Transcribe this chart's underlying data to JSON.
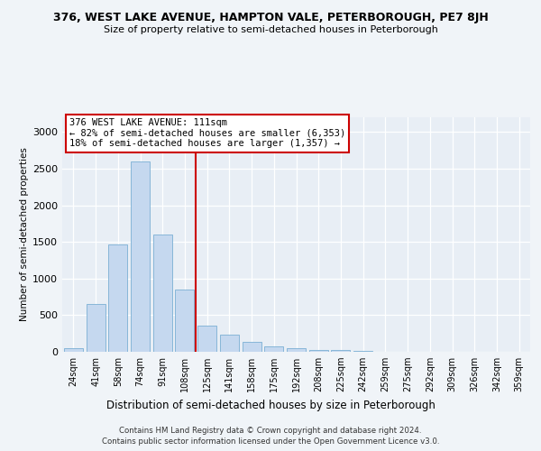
{
  "title1": "376, WEST LAKE AVENUE, HAMPTON VALE, PETERBOROUGH, PE7 8JH",
  "title2": "Size of property relative to semi-detached houses in Peterborough",
  "xlabel": "Distribution of semi-detached houses by size in Peterborough",
  "ylabel": "Number of semi-detached properties",
  "categories": [
    "24sqm",
    "41sqm",
    "58sqm",
    "74sqm",
    "91sqm",
    "108sqm",
    "125sqm",
    "141sqm",
    "158sqm",
    "175sqm",
    "192sqm",
    "208sqm",
    "225sqm",
    "242sqm",
    "259sqm",
    "275sqm",
    "292sqm",
    "309sqm",
    "326sqm",
    "342sqm",
    "359sqm"
  ],
  "values": [
    50,
    650,
    1460,
    2600,
    1600,
    850,
    360,
    230,
    130,
    70,
    50,
    30,
    20,
    10,
    5,
    5,
    3,
    3,
    2,
    2,
    2
  ],
  "bar_color": "#c5d8ef",
  "bar_edge_color": "#7aafd4",
  "vline_x": 5.5,
  "vline_color": "#cc0000",
  "annotation_title": "376 WEST LAKE AVENUE: 111sqm",
  "annotation_line1": "← 82% of semi-detached houses are smaller (6,353)",
  "annotation_line2": "18% of semi-detached houses are larger (1,357) →",
  "annotation_box_facecolor": "#ffffff",
  "annotation_box_edgecolor": "#cc0000",
  "footer1": "Contains HM Land Registry data © Crown copyright and database right 2024.",
  "footer2": "Contains public sector information licensed under the Open Government Licence v3.0.",
  "ylim": [
    0,
    3200
  ],
  "yticks": [
    0,
    500,
    1000,
    1500,
    2000,
    2500,
    3000
  ],
  "fig_facecolor": "#f0f4f8",
  "plot_facecolor": "#e8eef5"
}
